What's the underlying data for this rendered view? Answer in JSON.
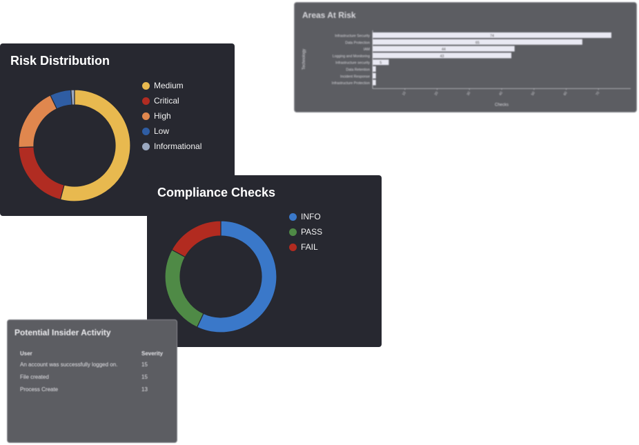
{
  "areas_at_risk": {
    "title": "Areas At Risk",
    "xlabel": "Checks",
    "ylabel": "Technology",
    "chart_data": {
      "type": "bar",
      "orientation": "horizontal",
      "categories": [
        "Infrastructure Security",
        "Data Protection",
        "IAM",
        "Logging and Monitoring",
        "Infrastructure security",
        "Data Retention",
        "Incident Response",
        "Infrastructure Protection"
      ],
      "values": [
        74,
        65,
        44,
        43,
        5,
        1,
        1,
        1
      ],
      "value_labels": [
        "74",
        "65",
        "44",
        "43",
        "5",
        "",
        "",
        ""
      ],
      "xlim": [
        0,
        80
      ],
      "xticks": [
        "10",
        "20",
        "30",
        "40",
        "50",
        "60",
        "70"
      ],
      "colors": {
        "bar": "#e9e9f3"
      }
    }
  },
  "risk_distribution": {
    "title": "Risk Distribution",
    "legend": [
      {
        "label": "Medium",
        "color": "#e8b94f"
      },
      {
        "label": "Critical",
        "color": "#b12c22"
      },
      {
        "label": "High",
        "color": "#e0874e"
      },
      {
        "label": "Low",
        "color": "#2f5da3"
      },
      {
        "label": "Informational",
        "color": "#9aa7bf"
      }
    ],
    "chart_data": {
      "type": "pie",
      "donut": true,
      "categories": [
        "Medium",
        "Critical",
        "High",
        "Low",
        "Informational"
      ],
      "values": [
        53,
        20,
        18,
        6,
        1
      ],
      "colors": [
        "#e8b94f",
        "#b12c22",
        "#e0874e",
        "#2f5da3",
        "#9aa7bf"
      ]
    }
  },
  "compliance_checks": {
    "title": "Compliance Checks",
    "legend": [
      {
        "label": "INFO",
        "color": "#3a78c9"
      },
      {
        "label": "PASS",
        "color": "#4f8a46"
      },
      {
        "label": "FAIL",
        "color": "#b22b20"
      }
    ],
    "chart_data": {
      "type": "pie",
      "donut": true,
      "categories": [
        "INFO",
        "PASS",
        "FAIL"
      ],
      "values": [
        57,
        26,
        17
      ],
      "colors": [
        "#3a78c9",
        "#4f8a46",
        "#b22b20"
      ]
    }
  },
  "insider_activity": {
    "title": "Potential Insider Activity",
    "columns": [
      "User",
      "Severity"
    ],
    "rows": [
      [
        "An account was successfully logged on.",
        "15"
      ],
      [
        "File created",
        "15"
      ],
      [
        "Process Create",
        "13"
      ]
    ]
  }
}
